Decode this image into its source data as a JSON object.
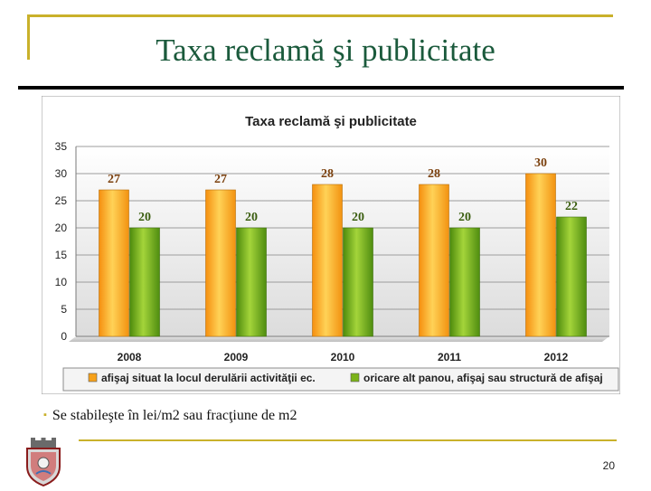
{
  "slide": {
    "title": "Taxa reclamă şi publicitate",
    "bullet": "Se stabileşte în lei/m2 sau fracţiune de m2",
    "page_number": "20"
  },
  "colors": {
    "accent": "#c9b12b",
    "title": "#1b5a3c",
    "series1": "#f7a21b",
    "series2": "#7bb31a"
  },
  "icons": {
    "crest": "city-coat-of-arms-icon"
  },
  "chart_data": {
    "type": "bar",
    "title": "Taxa reclamă şi publicitate",
    "categories": [
      "2008",
      "2009",
      "2010",
      "2011",
      "2012"
    ],
    "series": [
      {
        "name": "afişaj situat la locul derulării activităţii ec.",
        "values": [
          27,
          27,
          28,
          28,
          30
        ],
        "color": "#f7a21b"
      },
      {
        "name": "oricare alt panou, afişaj sau structură de afişaj",
        "values": [
          20,
          20,
          20,
          20,
          22
        ],
        "color": "#7bb31a"
      }
    ],
    "ylim": [
      0,
      35
    ],
    "yticks": [
      "0",
      "5",
      "10",
      "15",
      "20",
      "25",
      "30",
      "35"
    ],
    "grid": true,
    "legend": "bottom",
    "data_labels": true
  }
}
